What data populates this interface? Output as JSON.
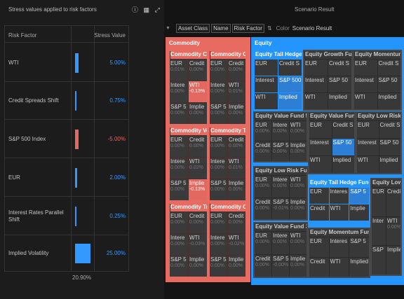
{
  "left_panel": {
    "title": "Stress values applied to risk factors",
    "col_factor": "Risk Factor",
    "col_value": "Stress Value",
    "rows": [
      {
        "factor": "WTI",
        "value": "5.00%",
        "bar_color": "#3399ff",
        "level": 5.0
      },
      {
        "factor": "Credit Spreads Shift",
        "value": "0.75%",
        "bar_color": "#3399ff",
        "level": 0.75
      },
      {
        "factor": "S&P 500 Index",
        "value": "-5.00%",
        "bar_color": "#e3685f",
        "level": -5.0
      },
      {
        "factor": "EUR",
        "value": "2.00%",
        "bar_color": "#3399ff",
        "level": 2.0
      },
      {
        "factor": "Interest Rates Parallel Shift",
        "value": "0.25%",
        "bar_color": "#3399ff",
        "level": 0.25
      },
      {
        "factor": "Implied Volatility",
        "value": "25.00%",
        "bar_color": "#3399ff",
        "level": 25.0
      }
    ],
    "total": "20.90%",
    "icons": [
      "help-icon",
      "export-icon",
      "expand-icon"
    ]
  },
  "right_panel": {
    "title": "Scenario Result",
    "toolbar": {
      "chips": [
        "Asset Class",
        "Name",
        "Risk Factor"
      ],
      "colour_label": "Color",
      "colour_value": "Scenario Result"
    },
    "colors": {
      "commodity": "#e86b62",
      "equity": "#2495ff",
      "neutral": "#383838",
      "neg": "#e3685f",
      "pos": "#2d7fd6"
    },
    "sections": [
      {
        "name": "Commodity",
        "color": "#e86b62",
        "tiles": [
          {
            "title": "Commodity Ca",
            "cells": [
              {
                "n": "EUR",
                "p": "0.01%"
              },
              {
                "n": "Credit",
                "p": "0.00%"
              },
              {
                "n": "Intere",
                "p": "0.00%"
              },
              {
                "n": "WTI",
                "p": "-0.13%",
                "hl": "neg"
              },
              {
                "n": "S&P 5",
                "p": "0.00%"
              },
              {
                "n": "Implie",
                "p": "0.00%"
              }
            ]
          },
          {
            "title": "Commodity Ca",
            "cells": [
              {
                "n": "EUR",
                "p": "0.00%"
              },
              {
                "n": "Credit",
                "p": "0.00%"
              },
              {
                "n": "Intere",
                "p": "0.00%"
              },
              {
                "n": "WTI",
                "p": "0.01%"
              },
              {
                "n": "S&P 5",
                "p": "0.00%"
              },
              {
                "n": "Implie",
                "p": "0.00%"
              }
            ]
          },
          {
            "title": "Commodity Vo",
            "cells": [
              {
                "n": "EUR",
                "p": "0.00%"
              },
              {
                "n": "Credit",
                "p": "0.00%"
              },
              {
                "n": "Intere",
                "p": "0.00%"
              },
              {
                "n": "WTI",
                "p": "0.02%"
              },
              {
                "n": "S&P 5",
                "p": "0.00%"
              },
              {
                "n": "Implie",
                "p": "-0.13%",
                "hl": "neg"
              }
            ]
          },
          {
            "title": "Commodity Tr",
            "cells": [
              {
                "n": "EUR",
                "p": "0.00%"
              },
              {
                "n": "Credit",
                "p": "0.00%"
              },
              {
                "n": "Intere",
                "p": "0.00%"
              },
              {
                "n": "WTI",
                "p": "0.01%"
              },
              {
                "n": "S&P 5",
                "p": "0.00%"
              },
              {
                "n": "Implie",
                "p": "0.00%"
              }
            ]
          },
          {
            "title": "Commodity Tr",
            "cells": [
              {
                "n": "EUR",
                "p": "0.00%"
              },
              {
                "n": "Credit",
                "p": "0.00%"
              },
              {
                "n": "Intere",
                "p": "0.00%"
              },
              {
                "n": "WTI",
                "p": "-0.03%"
              },
              {
                "n": "S&P 5",
                "p": "0.00%"
              },
              {
                "n": "Implie",
                "p": "0.00%"
              }
            ]
          },
          {
            "title": "Commodity Ca",
            "cells": [
              {
                "n": "EUR",
                "p": "0.00%"
              },
              {
                "n": "Credit",
                "p": "0.00%"
              },
              {
                "n": "Intere",
                "p": "0.00%"
              },
              {
                "n": "WTI",
                "p": "-0.02%"
              },
              {
                "n": "S&P 5",
                "p": "0.00%"
              },
              {
                "n": "Implie",
                "p": "0.00%"
              }
            ]
          }
        ]
      },
      {
        "name": "Equity",
        "color": "#2495ff",
        "tiles": [
          {
            "title": "Equity Tail Hedge",
            "hl": true,
            "cells": [
              {
                "n": "EUR",
                "p": ""
              },
              {
                "n": "Credit S",
                "p": ""
              },
              {
                "n": "Interest",
                "p": ""
              },
              {
                "n": "S&P 500",
                "p": "",
                "hl": "pos"
              },
              {
                "n": "WTI",
                "p": ""
              },
              {
                "n": "Implied",
                "p": "",
                "hl": "pos"
              }
            ]
          },
          {
            "title": "Equity Growth Fun",
            "cells": [
              {
                "n": "EUR",
                "p": ""
              },
              {
                "n": "Credit S",
                "p": ""
              },
              {
                "n": "Interest",
                "p": ""
              },
              {
                "n": "S&P 50",
                "p": ""
              },
              {
                "n": "WTI",
                "p": ""
              },
              {
                "n": "Implied",
                "p": ""
              }
            ]
          },
          {
            "title": "Equity Momentum",
            "cells": [
              {
                "n": "EUR",
                "p": ""
              },
              {
                "n": "Credit S",
                "p": ""
              },
              {
                "n": "Interest",
                "p": ""
              },
              {
                "n": "S&P 50",
                "p": ""
              },
              {
                "n": "WTI",
                "p": ""
              },
              {
                "n": "Implied",
                "p": ""
              }
            ]
          },
          {
            "title": "Equity Value Fund 5",
            "cells": [
              {
                "n": "EUR",
                "p": "0.00%"
              },
              {
                "n": "Intere",
                "p": "0.00%"
              },
              {
                "n": "WTI",
                "p": "0.00%"
              },
              {
                "n": "Credit",
                "p": "0.00%"
              },
              {
                "n": "S&P 5",
                "p": "0.00%"
              },
              {
                "n": "Implie",
                "p": "0.00%"
              }
            ]
          },
          {
            "title": "Equity Value Fun",
            "cells": [
              {
                "n": "EUR",
                "p": ""
              },
              {
                "n": "Credit S",
                "p": ""
              },
              {
                "n": "Interest",
                "p": ""
              },
              {
                "n": "S&P 50",
                "p": "",
                "hl": "pos"
              },
              {
                "n": "WTI",
                "p": ""
              },
              {
                "n": "Implied",
                "p": ""
              }
            ]
          },
          {
            "title": "Equity Low Risk",
            "cells": [
              {
                "n": "EUR",
                "p": ""
              },
              {
                "n": "Credit S",
                "p": ""
              },
              {
                "n": "Interest",
                "p": ""
              },
              {
                "n": "S&P 50",
                "p": ""
              },
              {
                "n": "WTI",
                "p": ""
              },
              {
                "n": "Implied",
                "p": ""
              }
            ]
          },
          {
            "title": "Equity Low Risk Fun",
            "cells": [
              {
                "n": "EUR",
                "p": "0.00%"
              },
              {
                "n": "Intere",
                "p": "0.00%"
              },
              {
                "n": "WTI",
                "p": "0.00%"
              },
              {
                "n": "Credit",
                "p": "0.00%"
              },
              {
                "n": "S&P 5",
                "p": "-0.01%"
              },
              {
                "n": "Implie",
                "p": "0.00%"
              }
            ]
          },
          {
            "title": "Equity Tail Hedge Fund",
            "hl": true,
            "cells": [
              {
                "n": "EUR",
                "p": ""
              },
              {
                "n": "Interes",
                "p": ""
              },
              {
                "n": "S&P 5",
                "p": "",
                "hl": "pos"
              },
              {
                "n": "Credit",
                "p": ""
              },
              {
                "n": "WTI",
                "p": ""
              },
              {
                "n": "Implie",
                "p": ""
              }
            ]
          },
          {
            "title": "Equity Low",
            "cells": [
              {
                "n": "EUR",
                "p": ""
              },
              {
                "n": "Credit",
                "p": ""
              },
              {
                "n": "Inter",
                "p": ""
              },
              {
                "n": "WTI",
                "p": "0.00%"
              },
              {
                "n": "S&P",
                "p": ""
              },
              {
                "n": "Implie",
                "p": ""
              }
            ]
          },
          {
            "title": "Equity Value Fund 3",
            "cells": [
              {
                "n": "EUR",
                "p": "0.00%"
              },
              {
                "n": "Intere",
                "p": "0.00%"
              },
              {
                "n": "WTI",
                "p": "0.00%"
              },
              {
                "n": "Credit",
                "p": "0.00%"
              },
              {
                "n": "S&P 5",
                "p": "-0.00%"
              },
              {
                "n": "Implie",
                "p": "0.00%"
              }
            ]
          },
          {
            "title": "Equity Momentum Fund",
            "cells": [
              {
                "n": "EUR",
                "p": ""
              },
              {
                "n": "Interes",
                "p": ""
              },
              {
                "n": "S&P 5",
                "p": ""
              },
              {
                "n": "Credit",
                "p": ""
              },
              {
                "n": "WTI",
                "p": ""
              },
              {
                "n": "Implied",
                "p": ""
              }
            ]
          }
        ]
      }
    ]
  }
}
